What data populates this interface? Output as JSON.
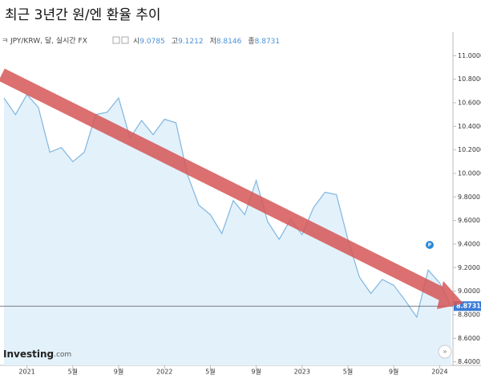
{
  "chart_data": {
    "type": "area",
    "title": "최근 3년간 원/엔 환율 추이",
    "symbol": "JPY/KRW, 달, 실시간 FX",
    "stats": [
      {
        "label": "시",
        "value": "9.0785"
      },
      {
        "label": "고",
        "value": "9.1212"
      },
      {
        "label": "저",
        "value": "8.8146"
      },
      {
        "label": "종",
        "value": "8.8731"
      }
    ],
    "brand": "Investing",
    "brand_suffix": ".com",
    "color": "#7fb6e0",
    "fill": "#e3f1fb",
    "categories": [
      null,
      null,
      "2021",
      null,
      null,
      null,
      "5월",
      null,
      null,
      null,
      "9월",
      null,
      null,
      null,
      "2022",
      null,
      null,
      null,
      "5월",
      null,
      null,
      null,
      "9월",
      null,
      null,
      null,
      "2023",
      null,
      null,
      null,
      "5월",
      null,
      null,
      null,
      "9월",
      null,
      null,
      null,
      "2024",
      null
    ],
    "values": [
      10.64,
      10.5,
      10.67,
      10.56,
      10.18,
      10.22,
      10.1,
      10.18,
      10.5,
      10.52,
      10.64,
      10.3,
      10.45,
      10.33,
      10.46,
      10.43,
      9.99,
      9.73,
      9.65,
      9.49,
      9.77,
      9.65,
      9.94,
      9.59,
      9.44,
      9.61,
      9.48,
      9.71,
      9.84,
      9.82,
      9.44,
      9.12,
      8.98,
      9.1,
      9.05,
      8.92,
      8.78,
      9.18,
      9.07,
      8.87
    ],
    "last_price": {
      "value": 8.8731,
      "label": "8.8731"
    },
    "ylim": [
      8.37,
      11.2
    ],
    "yticks": [
      {
        "value": 8.4,
        "label": "8.4000"
      },
      {
        "value": 8.6,
        "label": "8.6000"
      },
      {
        "value": 8.8,
        "label": "8.8000"
      },
      {
        "value": 9.0,
        "label": "9.0000"
      },
      {
        "value": 9.2,
        "label": "9.2000"
      },
      {
        "value": 9.4,
        "label": "9.4000"
      },
      {
        "value": 9.6,
        "label": "9.6000"
      },
      {
        "value": 9.8,
        "label": "9.8000"
      },
      {
        "value": 10.0,
        "label": "10.0000"
      },
      {
        "value": 10.2,
        "label": "10.2000"
      },
      {
        "value": 10.4,
        "label": "10.4000"
      },
      {
        "value": 10.6,
        "label": "10.6000"
      },
      {
        "value": 10.8,
        "label": "10.8000"
      },
      {
        "value": 11.0,
        "label": "11.0000"
      }
    ]
  }
}
